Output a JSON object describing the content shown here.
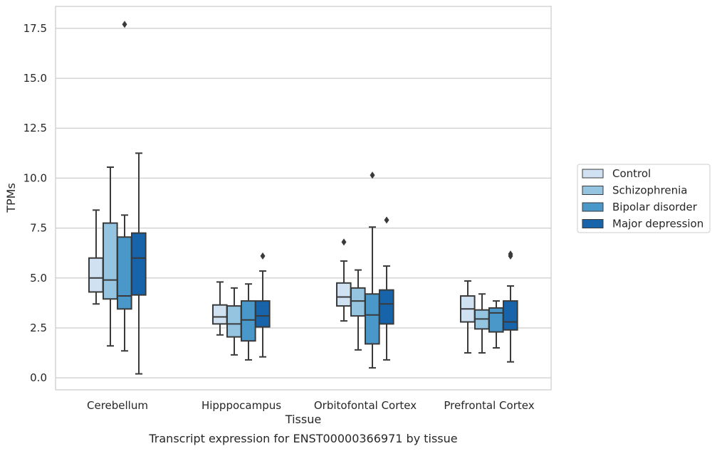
{
  "chart_data": {
    "type": "box",
    "title": "",
    "caption": "Transcript expression for ENST00000366971 by tissue",
    "xlabel": "Tissue",
    "ylabel": "TPMs",
    "ylim": [
      -0.6,
      18.6
    ],
    "yticks": [
      "0.0",
      "2.5",
      "5.0",
      "7.5",
      "10.0",
      "12.5",
      "15.0",
      "17.5"
    ],
    "ytick_values": [
      0,
      2.5,
      5,
      7.5,
      10,
      12.5,
      15,
      17.5
    ],
    "grid": "horizontal",
    "legend_position": "right",
    "categories": [
      "Cerebellum",
      "Hipppocampus",
      "Orbitofontal Cortex",
      "Prefrontal Cortex"
    ],
    "series": [
      {
        "name": "Control",
        "color": "#d0e1f2",
        "boxes": [
          {
            "whislo": 3.7,
            "q1": 4.3,
            "med": 5.0,
            "q3": 6.0,
            "whishi": 8.4,
            "fliers": []
          },
          {
            "whislo": 2.15,
            "q1": 2.7,
            "med": 3.05,
            "q3": 3.65,
            "whishi": 4.8,
            "fliers": []
          },
          {
            "whislo": 2.85,
            "q1": 3.6,
            "med": 4.05,
            "q3": 4.75,
            "whishi": 5.85,
            "fliers": [
              6.8
            ]
          },
          {
            "whislo": 1.25,
            "q1": 2.8,
            "med": 3.45,
            "q3": 4.1,
            "whishi": 4.85,
            "fliers": []
          }
        ]
      },
      {
        "name": "Schizophrenia",
        "color": "#94c4df",
        "boxes": [
          {
            "whislo": 1.6,
            "q1": 3.95,
            "med": 4.9,
            "q3": 7.75,
            "whishi": 10.55,
            "fliers": []
          },
          {
            "whislo": 1.15,
            "q1": 2.05,
            "med": 2.7,
            "q3": 3.6,
            "whishi": 4.5,
            "fliers": []
          },
          {
            "whislo": 1.4,
            "q1": 3.1,
            "med": 3.85,
            "q3": 4.5,
            "whishi": 5.4,
            "fliers": []
          },
          {
            "whislo": 1.25,
            "q1": 2.45,
            "med": 2.95,
            "q3": 3.4,
            "whishi": 4.2,
            "fliers": []
          }
        ]
      },
      {
        "name": "Bipolar disorder",
        "color": "#4a98c9",
        "boxes": [
          {
            "whislo": 1.35,
            "q1": 3.45,
            "med": 4.1,
            "q3": 7.05,
            "whishi": 8.15,
            "fliers": [
              17.7
            ]
          },
          {
            "whislo": 0.9,
            "q1": 1.85,
            "med": 2.9,
            "q3": 3.85,
            "whishi": 4.7,
            "fliers": []
          },
          {
            "whislo": 0.5,
            "q1": 1.7,
            "med": 3.15,
            "q3": 4.2,
            "whishi": 7.55,
            "fliers": [
              10.15
            ]
          },
          {
            "whislo": 1.5,
            "q1": 2.3,
            "med": 3.25,
            "q3": 3.5,
            "whishi": 3.85,
            "fliers": []
          }
        ]
      },
      {
        "name": "Major depression",
        "color": "#1764ab",
        "boxes": [
          {
            "whislo": 0.2,
            "q1": 4.15,
            "med": 6.0,
            "q3": 7.25,
            "whishi": 11.25,
            "fliers": []
          },
          {
            "whislo": 1.05,
            "q1": 2.55,
            "med": 3.1,
            "q3": 3.85,
            "whishi": 5.35,
            "fliers": [
              6.1
            ]
          },
          {
            "whislo": 0.9,
            "q1": 2.7,
            "med": 3.7,
            "q3": 4.4,
            "whishi": 5.6,
            "fliers": [
              7.9
            ]
          },
          {
            "whislo": 0.8,
            "q1": 2.4,
            "med": 2.8,
            "q3": 3.85,
            "whishi": 4.6,
            "fliers": [
              6.1,
              6.2
            ]
          }
        ]
      }
    ]
  }
}
